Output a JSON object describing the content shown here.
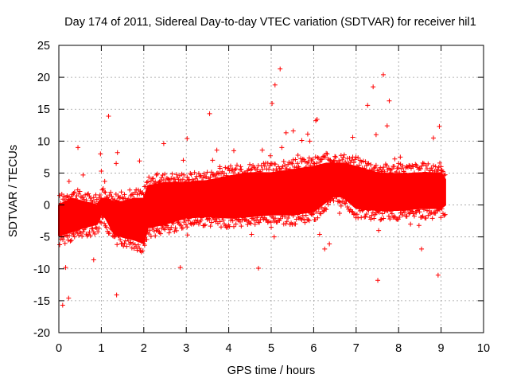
{
  "chart_data": {
    "type": "scatter",
    "title": "Day 174 of 2011, Sidereal Day-to-day VTEC variation (SDTVAR) for receiver hil1",
    "xlabel": "GPS time / hours",
    "ylabel": "SDTVAR / TECUs",
    "xlim": [
      0,
      10
    ],
    "ylim": [
      -20,
      25
    ],
    "xticks": [
      "0",
      "1",
      "2",
      "3",
      "4",
      "5",
      "6",
      "7",
      "8",
      "9",
      "10"
    ],
    "yticks": [
      "25",
      "20",
      "15",
      "10",
      "5",
      "0",
      "-5",
      "-10",
      "-15",
      "-20"
    ],
    "grid": true,
    "marker": "+",
    "color": "#ff0000",
    "series": [
      {
        "name": "SDTVAR",
        "band": {
          "x": [
            0.0,
            0.3,
            0.6,
            0.9,
            1.0,
            1.1,
            1.3,
            1.5,
            1.8,
            2.0,
            2.1,
            2.5,
            3.0,
            3.5,
            4.0,
            4.5,
            5.0,
            5.5,
            6.0,
            6.3,
            6.5,
            6.7,
            7.0,
            7.5,
            8.0,
            8.5,
            9.0,
            9.1
          ],
          "lo": [
            -4.8,
            -4.2,
            -3.5,
            -3.0,
            -1.5,
            -2.0,
            -4.5,
            -5.0,
            -5.5,
            -6.0,
            -3.5,
            -3.0,
            -2.0,
            -1.8,
            -2.0,
            -1.8,
            -1.5,
            -1.5,
            -1.0,
            0.5,
            1.5,
            1.2,
            -0.5,
            -0.8,
            -0.8,
            -0.5,
            -0.5,
            0.0
          ],
          "hi": [
            0.0,
            1.0,
            0.5,
            0.0,
            1.0,
            1.0,
            0.5,
            0.5,
            1.0,
            1.0,
            3.0,
            3.5,
            3.5,
            3.8,
            4.5,
            5.0,
            5.0,
            5.5,
            6.0,
            6.5,
            6.5,
            6.5,
            6.0,
            5.0,
            4.8,
            5.0,
            5.0,
            4.0
          ]
        },
        "outliers": [
          [
            0.09,
            -15.7
          ],
          [
            0.16,
            -9.8
          ],
          [
            0.23,
            -14.6
          ],
          [
            0.24,
            3.7
          ],
          [
            0.45,
            9.0
          ],
          [
            0.57,
            4.7
          ],
          [
            0.82,
            -8.6
          ],
          [
            0.98,
            8.0
          ],
          [
            1.0,
            5.3
          ],
          [
            1.08,
            3.7
          ],
          [
            1.17,
            13.9
          ],
          [
            1.35,
            6.5
          ],
          [
            1.36,
            -14.1
          ],
          [
            1.38,
            8.2
          ],
          [
            1.9,
            6.9
          ],
          [
            2.47,
            9.6
          ],
          [
            2.86,
            -9.8
          ],
          [
            2.93,
            7.0
          ],
          [
            3.03,
            -4.7
          ],
          [
            3.02,
            10.4
          ],
          [
            3.55,
            14.3
          ],
          [
            3.62,
            7.0
          ],
          [
            3.72,
            8.6
          ],
          [
            3.79,
            6.0
          ],
          [
            4.12,
            8.5
          ],
          [
            4.28,
            6.0
          ],
          [
            4.54,
            -4.6
          ],
          [
            4.7,
            -9.9
          ],
          [
            4.79,
            8.6
          ],
          [
            4.98,
            7.7
          ],
          [
            5.0,
            -3.5
          ],
          [
            5.02,
            15.9
          ],
          [
            5.07,
            -5.0
          ],
          [
            5.09,
            18.8
          ],
          [
            5.21,
            21.3
          ],
          [
            5.25,
            9.0
          ],
          [
            5.35,
            11.3
          ],
          [
            5.52,
            11.6
          ],
          [
            5.63,
            7.8
          ],
          [
            5.72,
            10.1
          ],
          [
            5.86,
            11.1
          ],
          [
            5.91,
            10.0
          ],
          [
            6.05,
            13.2
          ],
          [
            6.08,
            13.4
          ],
          [
            6.14,
            -4.6
          ],
          [
            6.26,
            -6.9
          ],
          [
            6.37,
            -6.1
          ],
          [
            6.5,
            7.6
          ],
          [
            6.61,
            -1.3
          ],
          [
            6.92,
            10.6
          ],
          [
            7.27,
            15.6
          ],
          [
            7.4,
            18.5
          ],
          [
            7.47,
            11.0
          ],
          [
            7.51,
            -11.8
          ],
          [
            7.53,
            -4.0
          ],
          [
            7.64,
            20.4
          ],
          [
            7.73,
            12.4
          ],
          [
            7.78,
            16.3
          ],
          [
            7.91,
            7.2
          ],
          [
            8.0,
            6.5
          ],
          [
            8.04,
            7.5
          ],
          [
            8.28,
            -3.0
          ],
          [
            8.48,
            -3.2
          ],
          [
            8.54,
            -6.9
          ],
          [
            8.82,
            10.5
          ],
          [
            8.93,
            -11.0
          ],
          [
            8.96,
            12.3
          ],
          [
            9.0,
            6.0
          ]
        ]
      }
    ]
  }
}
